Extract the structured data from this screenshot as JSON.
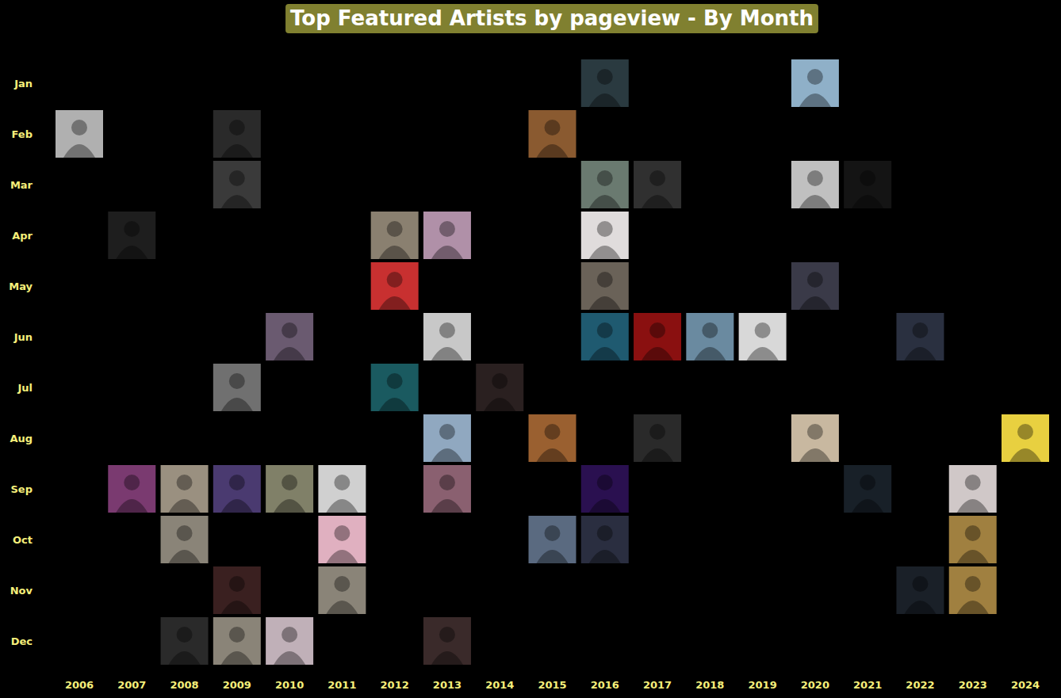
{
  "chart_data": {
    "type": "calendar",
    "title": "Top Featured Artists by pageview - By Month",
    "x": [
      2006,
      2007,
      2008,
      2009,
      2010,
      2011,
      2012,
      2013,
      2014,
      2015,
      2016,
      2017,
      2018,
      2019,
      2020,
      2021,
      2022,
      2023,
      2024
    ],
    "categories": [
      "Jan",
      "Feb",
      "Mar",
      "Apr",
      "May",
      "Jun",
      "Jul",
      "Aug",
      "Sep",
      "Oct",
      "Nov",
      "Dec"
    ],
    "cells": [
      {
        "x": 2016,
        "y": "Jan",
        "color": "#2a3a40"
      },
      {
        "x": 2020,
        "y": "Jan",
        "color": "#8fb0c8"
      },
      {
        "x": 2006,
        "y": "Feb",
        "color": "#b0b0b0"
      },
      {
        "x": 2009,
        "y": "Feb",
        "color": "#2a2a2a"
      },
      {
        "x": 2015,
        "y": "Feb",
        "color": "#8a5a30"
      },
      {
        "x": 2009,
        "y": "Mar",
        "color": "#3a3a3a"
      },
      {
        "x": 2016,
        "y": "Mar",
        "color": "#6a7a70"
      },
      {
        "x": 2017,
        "y": "Mar",
        "color": "#303030"
      },
      {
        "x": 2020,
        "y": "Mar",
        "color": "#c0c0c0"
      },
      {
        "x": 2021,
        "y": "Mar",
        "color": "#141414"
      },
      {
        "x": 2007,
        "y": "Apr",
        "color": "#1e1e1e"
      },
      {
        "x": 2012,
        "y": "Apr",
        "color": "#8a8070"
      },
      {
        "x": 2013,
        "y": "Apr",
        "color": "#b090a8"
      },
      {
        "x": 2016,
        "y": "Apr",
        "color": "#e0dcdc"
      },
      {
        "x": 2012,
        "y": "May",
        "color": "#c83030"
      },
      {
        "x": 2016,
        "y": "May",
        "color": "#6a6258"
      },
      {
        "x": 2020,
        "y": "May",
        "color": "#3a3a48"
      },
      {
        "x": 2010,
        "y": "Jun",
        "color": "#6a5a70"
      },
      {
        "x": 2013,
        "y": "Jun",
        "color": "#c8c8c8"
      },
      {
        "x": 2016,
        "y": "Jun",
        "color": "#1f5a70"
      },
      {
        "x": 2017,
        "y": "Jun",
        "color": "#8a1010"
      },
      {
        "x": 2018,
        "y": "Jun",
        "color": "#6a8aa0"
      },
      {
        "x": 2019,
        "y": "Jun",
        "color": "#d8d8d8"
      },
      {
        "x": 2022,
        "y": "Jun",
        "color": "#2a3040"
      },
      {
        "x": 2009,
        "y": "Jul",
        "color": "#707070"
      },
      {
        "x": 2012,
        "y": "Jul",
        "color": "#1a5a60"
      },
      {
        "x": 2014,
        "y": "Jul",
        "color": "#2a2020"
      },
      {
        "x": 2013,
        "y": "Aug",
        "color": "#90a8c0"
      },
      {
        "x": 2015,
        "y": "Aug",
        "color": "#9a6030"
      },
      {
        "x": 2017,
        "y": "Aug",
        "color": "#2a2a2a"
      },
      {
        "x": 2020,
        "y": "Aug",
        "color": "#c8b8a0"
      },
      {
        "x": 2024,
        "y": "Aug",
        "color": "#e8d040"
      },
      {
        "x": 2007,
        "y": "Sep",
        "color": "#7a3a70"
      },
      {
        "x": 2008,
        "y": "Sep",
        "color": "#9a9080"
      },
      {
        "x": 2009,
        "y": "Sep",
        "color": "#4a3a70"
      },
      {
        "x": 2010,
        "y": "Sep",
        "color": "#808068"
      },
      {
        "x": 2011,
        "y": "Sep",
        "color": "#d0d0d0"
      },
      {
        "x": 2013,
        "y": "Sep",
        "color": "#8a6070"
      },
      {
        "x": 2016,
        "y": "Sep",
        "color": "#2a1050"
      },
      {
        "x": 2021,
        "y": "Sep",
        "color": "#182028"
      },
      {
        "x": 2023,
        "y": "Sep",
        "color": "#d0c8c8"
      },
      {
        "x": 2008,
        "y": "Oct",
        "color": "#8a8478"
      },
      {
        "x": 2011,
        "y": "Oct",
        "color": "#e0b0c0"
      },
      {
        "x": 2015,
        "y": "Oct",
        "color": "#5a6a80"
      },
      {
        "x": 2016,
        "y": "Oct",
        "color": "#2a2e40"
      },
      {
        "x": 2023,
        "y": "Oct",
        "color": "#a08040"
      },
      {
        "x": 2009,
        "y": "Nov",
        "color": "#3a2020"
      },
      {
        "x": 2011,
        "y": "Nov",
        "color": "#8a8478"
      },
      {
        "x": 2022,
        "y": "Nov",
        "color": "#1a2028"
      },
      {
        "x": 2023,
        "y": "Nov",
        "color": "#a08040"
      },
      {
        "x": 2008,
        "y": "Dec",
        "color": "#2a2a2a"
      },
      {
        "x": 2009,
        "y": "Dec",
        "color": "#8a8478"
      },
      {
        "x": 2010,
        "y": "Dec",
        "color": "#c0b0b8"
      },
      {
        "x": 2013,
        "y": "Dec",
        "color": "#3a2a2a"
      }
    ]
  }
}
